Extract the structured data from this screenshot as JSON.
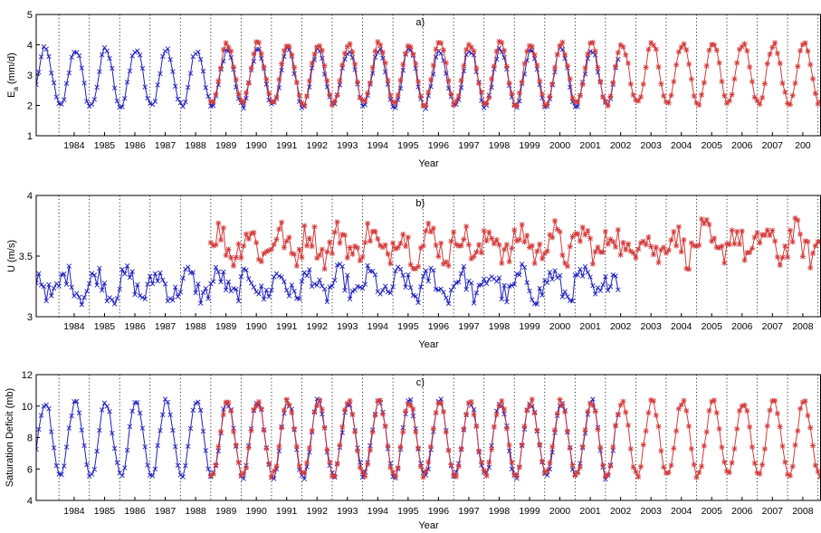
{
  "chart_data": [
    {
      "type": "line",
      "panel_label": "a)",
      "xlabel": "Year",
      "ylabel": "E_a (mm/d)",
      "ylabel_main": "E",
      "ylabel_sub": "a",
      "ylabel_unit": "(mm/d)",
      "xlim": [
        1983.25,
        2009.1
      ],
      "ylim": [
        1,
        5
      ],
      "yticks": [
        "1",
        "2",
        "3",
        "4",
        "5"
      ],
      "xticks": [
        "1984",
        "1985",
        "1986",
        "1987",
        "1988",
        "1989",
        "1990",
        "1991",
        "1992",
        "1993",
        "1994",
        "1995",
        "1996",
        "1997",
        "1998",
        "1999",
        "2000",
        "2001",
        "2002",
        "2003",
        "2004",
        "2005",
        "2006",
        "2007",
        "200"
      ],
      "grid": "vertical dotted lines at year boundaries",
      "series": [
        {
          "color": "#1f1fbf",
          "marker": "x",
          "start": 1983.25,
          "end": 2002.45,
          "mean": 2.9,
          "amplitude": 0.95,
          "peak_month": 6.5,
          "noise": 0.12
        },
        {
          "color": "#d43a3a",
          "marker": "*",
          "start": 1989.0,
          "end": 2009.1,
          "mean": 3.05,
          "amplitude": 1.0,
          "peak_month": 6.5,
          "noise": 0.1
        }
      ]
    },
    {
      "type": "line",
      "panel_label": "b)",
      "xlabel": "Year",
      "ylabel": "U (m/s)",
      "xlim": [
        1983.25,
        2009.1
      ],
      "ylim": [
        3,
        4
      ],
      "yticks": [
        "3",
        "3.5",
        "4"
      ],
      "xticks": [
        "1984",
        "1985",
        "1986",
        "1987",
        "1988",
        "1989",
        "1990",
        "1991",
        "1992",
        "1993",
        "1994",
        "1995",
        "1996",
        "1997",
        "1998",
        "1999",
        "2000",
        "2001",
        "2002",
        "2003",
        "2004",
        "2005",
        "2006",
        "2007",
        "2008"
      ],
      "grid": "vertical dotted lines at year boundaries",
      "series": [
        {
          "color": "#1f1fbf",
          "marker": "x",
          "start": 1983.25,
          "end": 2002.45,
          "mean": 3.26,
          "amplitude": 0.09,
          "peak_month": 3.0,
          "noise": 0.09
        },
        {
          "color": "#d43a3a",
          "marker": "*",
          "start": 1989.0,
          "end": 2009.1,
          "mean": 3.6,
          "amplitude": 0.1,
          "peak_month": 3.0,
          "noise": 0.12
        }
      ]
    },
    {
      "type": "line",
      "panel_label": "c)",
      "xlabel": "Year",
      "ylabel": "Saturation Deficit (mb)",
      "xlim": [
        1983.25,
        2009.1
      ],
      "ylim": [
        4,
        12
      ],
      "yticks": [
        "4",
        "6",
        "8",
        "10",
        "12"
      ],
      "xticks": [
        "1984",
        "1985",
        "1986",
        "1987",
        "1988",
        "1989",
        "1990",
        "1991",
        "1992",
        "1993",
        "1994",
        "1995",
        "1996",
        "1997",
        "1998",
        "1999",
        "2000",
        "2001",
        "2002",
        "2003",
        "2004",
        "2005",
        "2006",
        "2007",
        "2008"
      ],
      "grid": "vertical dotted lines at year boundaries",
      "series": [
        {
          "color": "#1f1fbf",
          "marker": "x",
          "start": 1983.25,
          "end": 2002.45,
          "mean": 7.9,
          "amplitude": 2.4,
          "peak_month": 6.5,
          "noise": 0.25
        },
        {
          "color": "#d43a3a",
          "marker": "*",
          "start": 1989.0,
          "end": 2009.1,
          "mean": 7.95,
          "amplitude": 2.35,
          "peak_month": 6.5,
          "noise": 0.22
        }
      ]
    }
  ]
}
